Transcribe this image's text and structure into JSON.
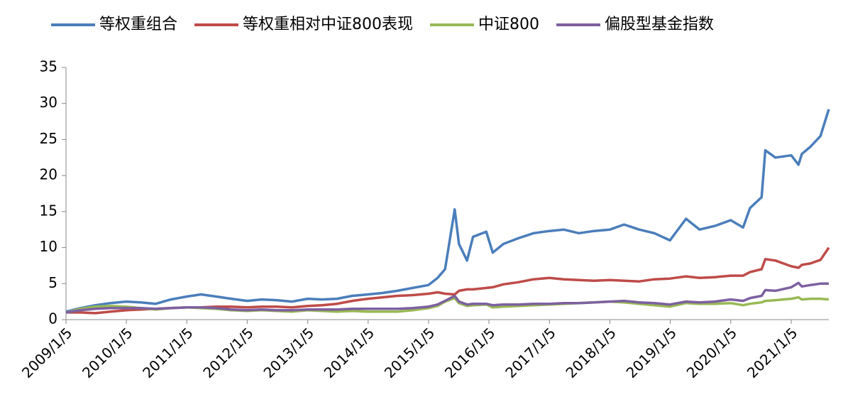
{
  "chart_data": {
    "type": "line",
    "x": [
      "2009/1/5",
      "2009/4/1",
      "2009/7/1",
      "2009/10/1",
      "2010/1/5",
      "2010/4/1",
      "2010/7/1",
      "2010/10/1",
      "2011/1/5",
      "2011/4/1",
      "2011/7/1",
      "2011/10/1",
      "2012/1/5",
      "2012/4/1",
      "2012/7/1",
      "2012/10/1",
      "2013/1/5",
      "2013/4/1",
      "2013/7/1",
      "2013/10/1",
      "2014/1/5",
      "2014/4/1",
      "2014/7/1",
      "2014/10/1",
      "2015/1/5",
      "2015/3/1",
      "2015/4/15",
      "2015/6/12",
      "2015/7/8",
      "2015/8/26",
      "2015/10/1",
      "2015/12/20",
      "2016/1/28",
      "2016/4/1",
      "2016/7/1",
      "2016/10/1",
      "2017/1/5",
      "2017/4/1",
      "2017/7/1",
      "2017/10/1",
      "2018/1/5",
      "2018/4/1",
      "2018/7/1",
      "2018/10/1",
      "2019/1/3",
      "2019/4/10",
      "2019/7/1",
      "2019/10/1",
      "2020/1/5",
      "2020/3/20",
      "2020/5/1",
      "2020/7/10",
      "2020/8/1",
      "2020/10/1",
      "2021/1/5",
      "2021/2/18",
      "2021/3/10",
      "2021/5/1",
      "2021/7/1",
      "2021/8/20"
    ],
    "series": [
      {
        "name": "等权重组合",
        "color": "#4a7ebb",
        "values": [
          1.1,
          1.6,
          2.0,
          2.3,
          2.5,
          2.4,
          2.2,
          2.8,
          3.2,
          3.5,
          3.2,
          2.9,
          2.6,
          2.8,
          2.7,
          2.5,
          2.9,
          2.8,
          2.9,
          3.3,
          3.5,
          3.7,
          4.0,
          4.4,
          4.8,
          5.8,
          7.0,
          15.3,
          10.5,
          8.2,
          11.5,
          12.2,
          9.3,
          10.5,
          11.3,
          12.0,
          12.3,
          12.5,
          12.0,
          12.3,
          12.5,
          13.2,
          12.5,
          12.0,
          11.0,
          14.0,
          12.5,
          13.0,
          13.8,
          12.8,
          15.5,
          17,
          23.5,
          22.5,
          22.8,
          21.5,
          23.0,
          24.0,
          25.5,
          29.2
        ]
      },
      {
        "name": "等权重相对中证800表现",
        "color": "#be4b48",
        "values": [
          1.0,
          1.0,
          0.9,
          1.1,
          1.3,
          1.4,
          1.5,
          1.6,
          1.7,
          1.7,
          1.8,
          1.8,
          1.7,
          1.8,
          1.8,
          1.7,
          1.9,
          2.0,
          2.2,
          2.6,
          2.9,
          3.1,
          3.3,
          3.4,
          3.6,
          3.8,
          3.6,
          3.5,
          4.0,
          4.2,
          4.2,
          4.4,
          4.5,
          4.9,
          5.2,
          5.6,
          5.8,
          5.6,
          5.5,
          5.4,
          5.5,
          5.4,
          5.3,
          5.6,
          5.7,
          6.0,
          5.8,
          5.9,
          6.1,
          6.1,
          6.6,
          7.0,
          8.4,
          8.2,
          7.4,
          7.2,
          7.6,
          7.8,
          8.3,
          10.0
        ]
      },
      {
        "name": "中证800",
        "color": "#98b954",
        "values": [
          1.0,
          1.5,
          1.8,
          1.9,
          1.8,
          1.6,
          1.4,
          1.6,
          1.7,
          1.6,
          1.5,
          1.3,
          1.2,
          1.3,
          1.2,
          1.1,
          1.3,
          1.2,
          1.1,
          1.2,
          1.1,
          1.1,
          1.1,
          1.3,
          1.6,
          1.9,
          2.5,
          3.0,
          2.3,
          1.9,
          2.0,
          2.1,
          1.7,
          1.8,
          1.9,
          2.0,
          2.1,
          2.2,
          2.3,
          2.4,
          2.5,
          2.4,
          2.2,
          2.0,
          1.8,
          2.3,
          2.2,
          2.2,
          2.3,
          2.0,
          2.2,
          2.4,
          2.6,
          2.7,
          2.9,
          3.1,
          2.8,
          2.9,
          2.9,
          2.8
        ]
      },
      {
        "name": "偏股型基金指数",
        "color": "#7d60a0",
        "values": [
          1.0,
          1.3,
          1.5,
          1.6,
          1.6,
          1.6,
          1.5,
          1.6,
          1.7,
          1.7,
          1.6,
          1.4,
          1.3,
          1.4,
          1.3,
          1.3,
          1.4,
          1.4,
          1.4,
          1.5,
          1.5,
          1.5,
          1.5,
          1.6,
          1.8,
          2.1,
          2.6,
          3.3,
          2.5,
          2.1,
          2.2,
          2.2,
          2.0,
          2.1,
          2.1,
          2.2,
          2.2,
          2.3,
          2.3,
          2.4,
          2.5,
          2.6,
          2.4,
          2.3,
          2.1,
          2.5,
          2.4,
          2.5,
          2.8,
          2.6,
          3.0,
          3.3,
          4.1,
          4.0,
          4.5,
          5.1,
          4.6,
          4.8,
          5.0,
          5.0
        ]
      }
    ],
    "xlim": [
      "2009/1/5",
      "2021/8/20"
    ],
    "xticks": [
      "2009/1/5",
      "2010/1/5",
      "2011/1/5",
      "2012/1/5",
      "2013/1/5",
      "2014/1/5",
      "2015/1/5",
      "2016/1/5",
      "2017/1/5",
      "2018/1/5",
      "2019/1/5",
      "2020/1/5",
      "2021/1/5"
    ],
    "ylim": [
      0,
      35
    ],
    "yticks": [
      0,
      5,
      10,
      15,
      20,
      25,
      30,
      35
    ],
    "legend": "top",
    "grid": false
  }
}
